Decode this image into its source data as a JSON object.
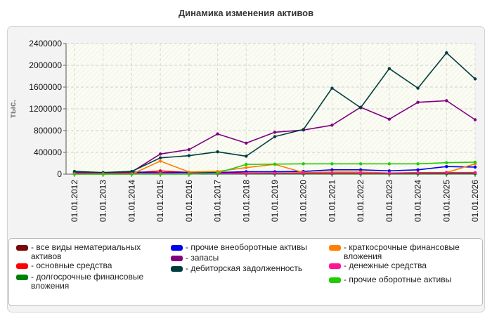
{
  "title": "Динамика изменения активов",
  "chart_data": {
    "type": "line",
    "title": "Динамика изменения активов",
    "ylabel": "тыс.",
    "xlabel": "",
    "ylim": [
      0,
      2400000
    ],
    "yticks": [
      0,
      400000,
      800000,
      1200000,
      1600000,
      2000000,
      2400000
    ],
    "ytick_labels": [
      "0",
      "400000",
      "800000",
      "1200000",
      "1600000",
      "2000000",
      "2400000"
    ],
    "grid": true,
    "legend_position": "bottom",
    "categories": [
      "01.01.2012",
      "01.01.2013",
      "01.01.2014",
      "01.01.2015",
      "01.01.2016",
      "01.01.2017",
      "01.01.2018",
      "01.01.2019",
      "01.01.2020",
      "01.01.2021",
      "01.01.2022",
      "01.01.2023",
      "01.01.2024",
      "01.01.2025",
      "01.01.2026"
    ],
    "series": [
      {
        "name": "- все виды нематериальных активов",
        "color": "#7a0a0a",
        "values": [
          15000,
          10000,
          10000,
          10000,
          8000,
          8000,
          8000,
          8000,
          8000,
          8000,
          8000,
          8000,
          8000,
          8000,
          8000
        ]
      },
      {
        "name": "- основные средства",
        "color": "#ff0000",
        "values": [
          20000,
          15000,
          20000,
          60000,
          30000,
          25000,
          20000,
          20000,
          25000,
          25000,
          20000,
          15000,
          15000,
          15000,
          15000
        ]
      },
      {
        "name": "- долгосрочные финансовые вложения",
        "color": "#008000",
        "values": [
          5000,
          5000,
          5000,
          5000,
          5000,
          5000,
          5000,
          5000,
          5000,
          5000,
          5000,
          5000,
          5000,
          5000,
          5000
        ]
      },
      {
        "name": "- прочие внеоборотные активы",
        "color": "#0000ee",
        "values": [
          30000,
          25000,
          40000,
          30000,
          35000,
          30000,
          45000,
          45000,
          50000,
          80000,
          80000,
          60000,
          80000,
          140000,
          130000
        ]
      },
      {
        "name": "- запасы",
        "color": "#800080",
        "values": [
          40000,
          20000,
          40000,
          370000,
          450000,
          740000,
          570000,
          770000,
          810000,
          900000,
          1230000,
          1010000,
          1320000,
          1350000,
          1000000
        ]
      },
      {
        "name": "- дебиторская задолженность",
        "color": "#003c3c",
        "values": [
          50000,
          30000,
          50000,
          300000,
          340000,
          410000,
          330000,
          690000,
          820000,
          1580000,
          1220000,
          1940000,
          1580000,
          2230000,
          1750000
        ]
      },
      {
        "name": "- краткосрочные финансовые вложения",
        "color": "#ff8000",
        "values": [
          0,
          0,
          0,
          240000,
          40000,
          50000,
          120000,
          180000,
          30000,
          40000,
          40000,
          20000,
          30000,
          30000,
          190000
        ]
      },
      {
        "name": "- денежные средства",
        "color": "#ff1493",
        "values": [
          10000,
          10000,
          10000,
          20000,
          10000,
          10000,
          15000,
          20000,
          20000,
          20000,
          20000,
          20000,
          25000,
          30000,
          30000
        ]
      },
      {
        "name": "- прочие оборотные активы",
        "color": "#22cc00",
        "values": [
          0,
          0,
          0,
          0,
          0,
          20000,
          180000,
          185000,
          190000,
          190000,
          190000,
          190000,
          190000,
          210000,
          220000
        ]
      }
    ]
  }
}
